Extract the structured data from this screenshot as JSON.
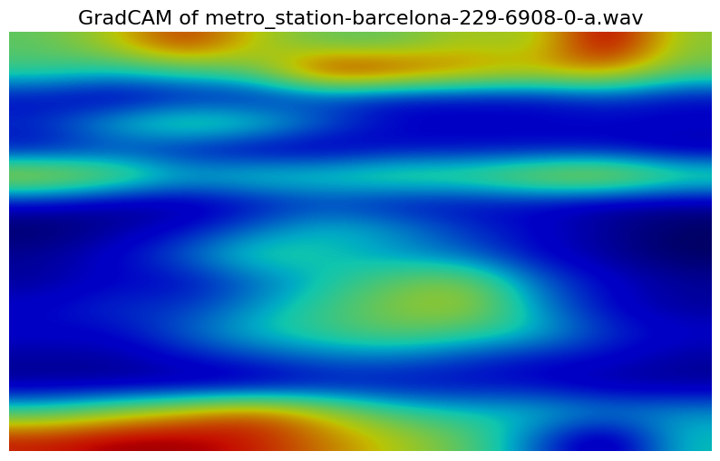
{
  "chart_data": {
    "type": "heatmap",
    "title": "GradCAM of metro_station-barcelona-229-6908-0-a.wav",
    "tick_labels": false,
    "cells": [
      [
        0.5,
        0.6,
        0.8,
        0.6,
        0.5,
        0.5,
        0.6,
        0.55,
        0.9,
        0.55
      ],
      [
        0.45,
        0.4,
        0.45,
        0.5,
        0.85,
        0.8,
        0.7,
        0.65,
        0.7,
        0.5
      ],
      [
        0.2,
        0.15,
        0.2,
        0.2,
        0.25,
        0.2,
        0.2,
        0.2,
        0.25,
        0.2
      ],
      [
        0.25,
        0.4,
        0.5,
        0.45,
        0.3,
        0.2,
        0.2,
        0.2,
        0.2,
        0.2
      ],
      [
        0.2,
        0.25,
        0.2,
        0.15,
        0.15,
        0.2,
        0.2,
        0.2,
        0.2,
        0.15
      ],
      [
        0.65,
        0.55,
        0.4,
        0.45,
        0.45,
        0.5,
        0.5,
        0.6,
        0.65,
        0.5
      ],
      [
        0.2,
        0.15,
        0.15,
        0.2,
        0.25,
        0.2,
        0.2,
        0.2,
        0.15,
        0.15
      ],
      [
        0.1,
        0.15,
        0.2,
        0.3,
        0.4,
        0.35,
        0.25,
        0.2,
        0.15,
        0.1
      ],
      [
        0.15,
        0.2,
        0.3,
        0.45,
        0.4,
        0.35,
        0.3,
        0.2,
        0.15,
        0.1
      ],
      [
        0.15,
        0.2,
        0.2,
        0.3,
        0.4,
        0.5,
        0.55,
        0.3,
        0.2,
        0.15
      ],
      [
        0.2,
        0.25,
        0.25,
        0.35,
        0.45,
        0.55,
        0.6,
        0.35,
        0.2,
        0.15
      ],
      [
        0.2,
        0.2,
        0.3,
        0.4,
        0.45,
        0.5,
        0.45,
        0.4,
        0.25,
        0.2
      ],
      [
        0.15,
        0.15,
        0.2,
        0.25,
        0.3,
        0.3,
        0.25,
        0.2,
        0.2,
        0.15
      ],
      [
        0.15,
        0.15,
        0.15,
        0.15,
        0.2,
        0.2,
        0.2,
        0.2,
        0.15,
        0.15
      ],
      [
        0.45,
        0.55,
        0.65,
        0.75,
        0.6,
        0.45,
        0.4,
        0.4,
        0.35,
        0.35
      ],
      [
        0.8,
        0.85,
        0.85,
        0.8,
        0.7,
        0.6,
        0.5,
        0.3,
        0.1,
        0.4
      ]
    ]
  }
}
